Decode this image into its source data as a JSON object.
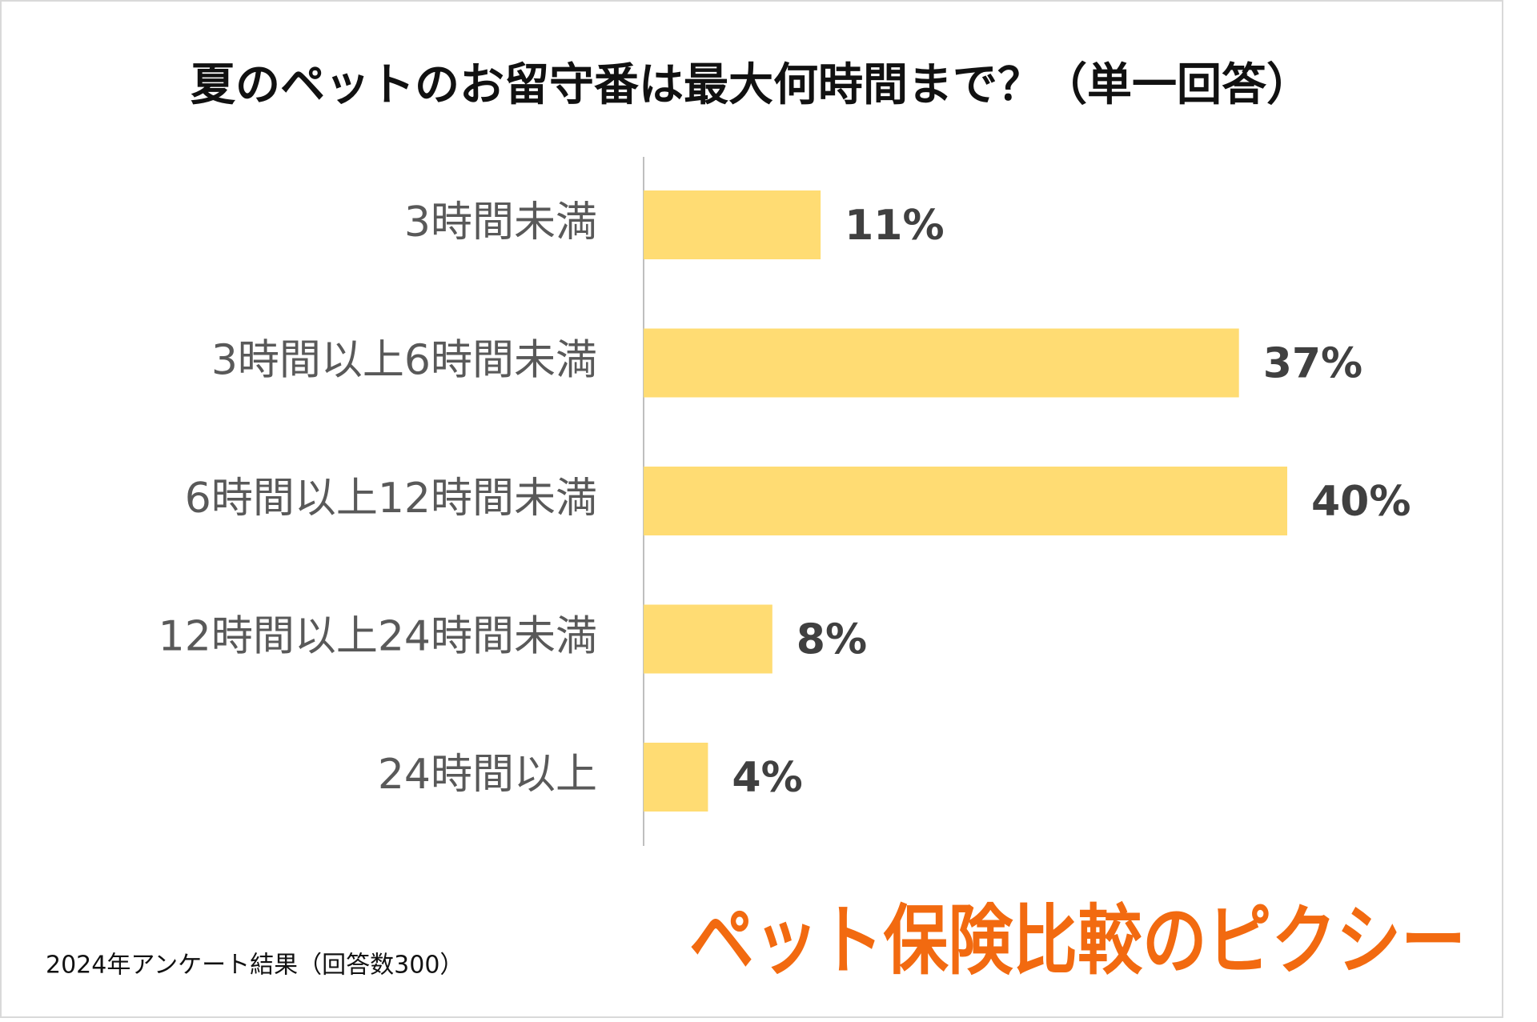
{
  "chart_data": {
    "type": "bar",
    "orientation": "horizontal",
    "title": "夏のペットのお留守番は最大何時間まで？（単一回答）",
    "categories": [
      "3時間未満",
      "3時間以上6時間未満",
      "6時間以上12時間未満",
      "12時間以上24時間未満",
      "24時間以上"
    ],
    "values": [
      11,
      37,
      40,
      8,
      4
    ],
    "value_labels": [
      "11%",
      "37%",
      "40%",
      "8%",
      "4%"
    ],
    "color": "#ffdc73",
    "note": "2024年アンケート結果（回答数300）",
    "brand": "ペット保険比較のピクシー"
  }
}
